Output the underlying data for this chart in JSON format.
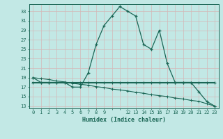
{
  "xlabel": "Humidex (Indice chaleur)",
  "bg_color": "#c2e8e5",
  "grid_color": "#d4b8b8",
  "line_color": "#1a6655",
  "x_values": [
    0,
    1,
    2,
    3,
    4,
    5,
    6,
    7,
    8,
    9,
    10,
    11,
    12,
    13,
    14,
    15,
    16,
    17,
    18,
    19,
    20,
    21,
    22,
    23
  ],
  "y_main": [
    19,
    18,
    18,
    18,
    18,
    17,
    17,
    20,
    26,
    30,
    32,
    34,
    33,
    32,
    26,
    25,
    29,
    22,
    18,
    18,
    18,
    16,
    14,
    13
  ],
  "y_flat": [
    18,
    18,
    18,
    18,
    18,
    18,
    18,
    18,
    18,
    18,
    18,
    18,
    18,
    18,
    18,
    18,
    18,
    18,
    18,
    18,
    18,
    18,
    18,
    18
  ],
  "y_decline": [
    19,
    18.8,
    18.6,
    18.3,
    18.1,
    17.8,
    17.6,
    17.4,
    17.1,
    16.9,
    16.6,
    16.4,
    16.2,
    15.9,
    15.7,
    15.4,
    15.2,
    15.0,
    14.7,
    14.5,
    14.2,
    14.0,
    13.5,
    13.0
  ],
  "xlim": [
    -0.5,
    23.5
  ],
  "ylim": [
    12.5,
    34.5
  ],
  "yticks": [
    13,
    15,
    17,
    19,
    21,
    23,
    25,
    27,
    29,
    31,
    33
  ],
  "xticks": [
    0,
    1,
    2,
    3,
    4,
    5,
    6,
    7,
    8,
    9,
    12,
    13,
    14,
    15,
    16,
    17,
    18,
    19,
    20,
    21,
    22,
    23
  ]
}
